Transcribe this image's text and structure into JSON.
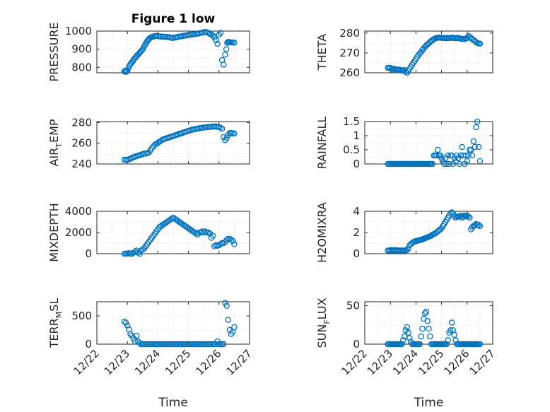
{
  "chart_data": [
    {
      "type": "scatter",
      "title": "Figure 1 low",
      "ylabel": "PRESSURE",
      "ylim": [
        770,
        1000
      ],
      "yticks": [
        "1000",
        "900",
        "800"
      ],
      "ytick_values": [
        1000,
        900,
        800
      ],
      "xlim": [
        0,
        5
      ],
      "x": [
        0.9,
        0.92,
        0.95,
        0.97,
        1.0,
        1.03,
        1.07,
        1.1,
        1.13,
        1.17,
        1.2,
        1.23,
        1.27,
        1.3,
        1.33,
        1.37,
        1.4,
        1.43,
        1.47,
        1.5,
        1.53,
        1.57,
        1.6,
        1.63,
        1.67,
        1.7,
        1.73,
        1.77,
        1.8,
        1.85,
        1.9,
        1.95,
        2.0,
        2.05,
        2.1,
        2.15,
        2.2,
        2.25,
        2.3,
        2.35,
        2.4,
        2.45,
        2.5,
        2.55,
        2.6,
        2.65,
        2.7,
        2.75,
        2.8,
        2.85,
        2.9,
        2.95,
        3.0,
        3.05,
        3.1,
        3.15,
        3.2,
        3.25,
        3.3,
        3.35,
        3.4,
        3.45,
        3.5,
        3.55,
        3.6,
        3.65,
        3.7,
        3.75,
        3.8,
        3.85,
        3.9,
        3.95,
        4.0,
        4.05,
        4.1,
        4.15,
        4.2,
        4.24,
        4.27,
        4.3,
        4.33,
        4.36,
        4.4,
        4.45,
        4.5
      ],
      "y": [
        778,
        780,
        775,
        779,
        782,
        795,
        810,
        818,
        825,
        832,
        840,
        848,
        855,
        862,
        868,
        873,
        880,
        886,
        893,
        900,
        910,
        920,
        930,
        940,
        948,
        955,
        960,
        965,
        968,
        970,
        972,
        973,
        972,
        971,
        970,
        970,
        969,
        968,
        968,
        967,
        965,
        963,
        962,
        964,
        966,
        968,
        970,
        971,
        972,
        974,
        975,
        977,
        978,
        980,
        981,
        982,
        983,
        985,
        986,
        988,
        990,
        991,
        993,
        995,
        993,
        990,
        985,
        980,
        975,
        965,
        950,
        930,
        980,
        990,
        840,
        815,
        870,
        900,
        935,
        940,
        940,
        938,
        937,
        937,
        936
      ],
      "color": "#0072bd"
    },
    {
      "type": "scatter",
      "ylabel": "THETA",
      "ylim": [
        260,
        281
      ],
      "yticks": [
        "280",
        "270",
        "260"
      ],
      "ytick_values": [
        280,
        270,
        260
      ],
      "xlim": [
        0,
        5
      ],
      "x": [
        0.9,
        0.95,
        1.0,
        1.05,
        1.1,
        1.15,
        1.2,
        1.25,
        1.3,
        1.35,
        1.4,
        1.45,
        1.5,
        1.55,
        1.6,
        1.65,
        1.7,
        1.75,
        1.8,
        1.85,
        1.9,
        1.95,
        2.0,
        2.05,
        2.1,
        2.15,
        2.2,
        2.25,
        2.3,
        2.35,
        2.4,
        2.45,
        2.5,
        2.55,
        2.6,
        2.65,
        2.7,
        2.75,
        2.8,
        2.85,
        2.9,
        2.95,
        3.0,
        3.05,
        3.1,
        3.15,
        3.2,
        3.25,
        3.3,
        3.35,
        3.4,
        3.45,
        3.5,
        3.55,
        3.6,
        3.65,
        3.7,
        3.75,
        3.8,
        3.85,
        3.9,
        3.95,
        4.0,
        4.05,
        4.1,
        4.15,
        4.2,
        4.25,
        4.3,
        4.35,
        4.4,
        4.45,
        4.5
      ],
      "y": [
        262.5,
        262.5,
        262.4,
        262.0,
        261.5,
        262.0,
        261.8,
        261.6,
        261.5,
        261.6,
        261.4,
        261.2,
        261.0,
        261.4,
        260.5,
        260.0,
        261.0,
        262.0,
        263.0,
        264.0,
        265.0,
        266.0,
        267.0,
        268.0,
        269.0,
        269.8,
        270.5,
        271.5,
        272.2,
        273.0,
        273.8,
        274.3,
        274.8,
        275.5,
        276.0,
        276.5,
        276.9,
        277.3,
        277.5,
        277.6,
        277.8,
        277.7,
        277.6,
        277.5,
        277.6,
        277.5,
        277.4,
        277.6,
        277.5,
        277.5,
        277.7,
        277.6,
        277.5,
        277.4,
        277.5,
        277.6,
        277.3,
        277.2,
        277.0,
        277.1,
        277.0,
        277.2,
        277.5,
        278.5,
        278.0,
        277.5,
        277.0,
        276.5,
        276.0,
        275.5,
        275.0,
        274.8,
        274.7
      ],
      "color": "#0072bd"
    },
    {
      "type": "scatter",
      "ylabel": "AIR_TEMP",
      "ylabel_main": "AIR",
      "ylabel_sub": "T",
      "ylabel_tail": "EMP",
      "ylim": [
        240,
        281
      ],
      "yticks": [
        "280",
        "260",
        "240"
      ],
      "ytick_values": [
        280,
        260,
        240
      ],
      "xlim": [
        0,
        5
      ],
      "x": [
        0.9,
        0.95,
        1.0,
        1.05,
        1.1,
        1.15,
        1.2,
        1.25,
        1.3,
        1.35,
        1.4,
        1.45,
        1.5,
        1.55,
        1.6,
        1.65,
        1.7,
        1.75,
        1.8,
        1.85,
        1.9,
        1.95,
        2.0,
        2.05,
        2.1,
        2.15,
        2.2,
        2.25,
        2.3,
        2.35,
        2.4,
        2.45,
        2.5,
        2.55,
        2.6,
        2.65,
        2.7,
        2.75,
        2.8,
        2.85,
        2.9,
        2.95,
        3.0,
        3.05,
        3.1,
        3.15,
        3.2,
        3.25,
        3.3,
        3.35,
        3.4,
        3.45,
        3.5,
        3.55,
        3.6,
        3.65,
        3.7,
        3.75,
        3.8,
        3.85,
        3.9,
        3.95,
        4.0,
        4.05,
        4.1,
        4.15,
        4.2,
        4.25,
        4.3,
        4.35,
        4.4,
        4.45,
        4.5
      ],
      "y": [
        244,
        244,
        244,
        244.5,
        245,
        246,
        246.5,
        247,
        247.5,
        248,
        248.5,
        249,
        249.5,
        250,
        250,
        250.5,
        251,
        253,
        255,
        257,
        258.5,
        259.5,
        260.5,
        261.5,
        262.5,
        263.5,
        264,
        264.5,
        265,
        265.5,
        266,
        266.5,
        267,
        267.5,
        268,
        268.5,
        269,
        269.5,
        270,
        270.5,
        271,
        271.5,
        272,
        272.5,
        273,
        273.3,
        273.6,
        274,
        274.2,
        274.5,
        274.8,
        275,
        275.2,
        275.4,
        275.5,
        275.7,
        275.8,
        276,
        276.1,
        276.2,
        276.3,
        276,
        275.5,
        275,
        274,
        266,
        263,
        265,
        268,
        270,
        270,
        269.5,
        269.5
      ],
      "color": "#0072bd"
    },
    {
      "type": "scatter",
      "ylabel": "RAINFALL",
      "ylim": [
        0,
        1.5
      ],
      "yticks": [
        "1.5",
        "1",
        "0.5",
        "0"
      ],
      "ytick_values": [
        1.5,
        1,
        0.5,
        0
      ],
      "xlim": [
        0,
        5
      ],
      "x": [
        0.9,
        0.95,
        1.0,
        1.05,
        1.1,
        1.15,
        1.2,
        1.25,
        1.3,
        1.35,
        1.4,
        1.45,
        1.5,
        1.55,
        1.6,
        1.65,
        1.7,
        1.75,
        1.8,
        1.85,
        1.9,
        1.95,
        2.0,
        2.05,
        2.1,
        2.15,
        2.2,
        2.25,
        2.3,
        2.35,
        2.4,
        2.45,
        2.5,
        2.55,
        2.6,
        2.65,
        2.7,
        2.75,
        2.8,
        2.85,
        2.9,
        2.95,
        3.0,
        3.05,
        3.1,
        3.15,
        3.2,
        3.25,
        3.3,
        3.35,
        3.4,
        3.45,
        3.5,
        3.55,
        3.6,
        3.65,
        3.7,
        3.75,
        3.8,
        3.85,
        3.9,
        3.95,
        4.0,
        4.05,
        4.1,
        4.15,
        4.2,
        4.25,
        4.3,
        4.35,
        4.4,
        4.45,
        4.5
      ],
      "y": [
        0,
        0,
        0,
        0,
        0,
        0,
        0,
        0,
        0,
        0,
        0,
        0,
        0,
        0,
        0,
        0,
        0,
        0,
        0,
        0,
        0,
        0,
        0,
        0,
        0,
        0,
        0,
        0,
        0,
        0,
        0,
        0,
        0,
        0,
        0,
        0,
        0.3,
        0.3,
        0.3,
        0.5,
        0.3,
        0.3,
        0.2,
        0.1,
        0,
        0.2,
        0,
        0.3,
        0,
        0.3,
        0.3,
        0,
        0.2,
        0.1,
        0.3,
        0.2,
        0,
        0.3,
        0.6,
        0.3,
        0,
        0.3,
        0.1,
        0.3,
        0.5,
        0.5,
        0.3,
        0.8,
        0.6,
        1.3,
        1.5,
        0.6,
        0.1
      ],
      "color": "#0072bd"
    },
    {
      "type": "scatter",
      "ylabel": "MIXDEPTH",
      "ylim": [
        0,
        4000
      ],
      "yticks": [
        "4000",
        "2000",
        "0"
      ],
      "ytick_values": [
        4000,
        2000,
        0
      ],
      "xlim": [
        0,
        5
      ],
      "x": [
        0.9,
        0.95,
        1.0,
        1.05,
        1.1,
        1.15,
        1.2,
        1.25,
        1.3,
        1.35,
        1.4,
        1.45,
        1.5,
        1.55,
        1.6,
        1.65,
        1.7,
        1.75,
        1.8,
        1.85,
        1.9,
        1.95,
        2.0,
        2.05,
        2.1,
        2.15,
        2.2,
        2.25,
        2.3,
        2.35,
        2.4,
        2.45,
        2.5,
        2.55,
        2.6,
        2.65,
        2.7,
        2.75,
        2.8,
        2.85,
        2.9,
        2.95,
        3.0,
        3.05,
        3.1,
        3.15,
        3.2,
        3.25,
        3.3,
        3.35,
        3.4,
        3.45,
        3.5,
        3.55,
        3.6,
        3.65,
        3.7,
        3.75,
        3.8,
        3.85,
        3.9,
        3.95,
        4.0,
        4.05,
        4.1,
        4.15,
        4.2,
        4.25,
        4.3,
        4.35,
        4.4,
        4.45,
        4.5
      ],
      "y": [
        0,
        0,
        20,
        50,
        0,
        0,
        100,
        200,
        300,
        100,
        0,
        300,
        400,
        500,
        700,
        900,
        1100,
        1300,
        1500,
        1700,
        1900,
        2100,
        2300,
        2500,
        2600,
        2700,
        2800,
        2900,
        3000,
        3100,
        3200,
        3300,
        3400,
        3300,
        3200,
        3100,
        3000,
        2900,
        2800,
        2700,
        2600,
        2500,
        2400,
        2300,
        2200,
        2100,
        2000,
        1900,
        1800,
        2000,
        2000,
        2100,
        2000,
        2100,
        2000,
        2000,
        1900,
        1500,
        1700,
        700,
        800,
        750,
        800,
        900,
        1000,
        1000,
        1100,
        1300,
        1400,
        1400,
        1300,
        1200,
        900
      ],
      "color": "#0072bd"
    },
    {
      "type": "scatter",
      "ylabel": "H2OMIXRA",
      "ylim": [
        0,
        4
      ],
      "yticks": [
        "4",
        "2",
        "0"
      ],
      "ytick_values": [
        4,
        2,
        0
      ],
      "xlim": [
        0,
        5
      ],
      "x": [
        0.9,
        0.95,
        1.0,
        1.05,
        1.1,
        1.15,
        1.2,
        1.25,
        1.3,
        1.35,
        1.4,
        1.45,
        1.5,
        1.55,
        1.6,
        1.65,
        1.7,
        1.75,
        1.8,
        1.85,
        1.9,
        1.95,
        2.0,
        2.05,
        2.1,
        2.15,
        2.2,
        2.25,
        2.3,
        2.35,
        2.4,
        2.45,
        2.5,
        2.55,
        2.6,
        2.65,
        2.7,
        2.75,
        2.8,
        2.85,
        2.9,
        2.95,
        3.0,
        3.05,
        3.1,
        3.15,
        3.2,
        3.25,
        3.3,
        3.35,
        3.4,
        3.45,
        3.5,
        3.55,
        3.6,
        3.65,
        3.7,
        3.75,
        3.8,
        3.85,
        3.9,
        3.95,
        4.0,
        4.05,
        4.1,
        4.15,
        4.2,
        4.25,
        4.3,
        4.35,
        4.4,
        4.45,
        4.5
      ],
      "y": [
        0.3,
        0.3,
        0.3,
        0.35,
        0.3,
        0.3,
        0.35,
        0.3,
        0.3,
        0.3,
        0.3,
        0.3,
        0.3,
        0.3,
        0.3,
        0.35,
        0.5,
        0.8,
        0.9,
        1.0,
        1.1,
        1.15,
        1.2,
        1.2,
        1.25,
        1.3,
        1.3,
        1.35,
        1.4,
        1.45,
        1.5,
        1.55,
        1.6,
        1.65,
        1.7,
        1.8,
        1.85,
        1.9,
        2.0,
        2.1,
        2.2,
        2.3,
        2.4,
        2.6,
        2.8,
        3.0,
        3.2,
        3.4,
        3.6,
        3.8,
        3.9,
        3.8,
        3.5,
        3.4,
        3.5,
        3.5,
        3.5,
        3.6,
        3.4,
        3.5,
        3.6,
        3.5,
        3.6,
        3.5,
        3.4,
        2.3,
        2.5,
        2.6,
        2.7,
        2.8,
        2.7,
        2.7,
        2.6
      ],
      "color": "#0072bd"
    },
    {
      "type": "scatter",
      "ylabel": "TERR_MSL",
      "ylabel_main": "TERR",
      "ylabel_sub": "M",
      "ylabel_tail": "SL",
      "ylim": [
        0,
        750
      ],
      "yticks": [
        "500",
        "0"
      ],
      "ytick_values": [
        500,
        0
      ],
      "xlim": [
        0,
        5
      ],
      "xticks": [
        "12/22",
        "12/23",
        "12/24",
        "12/25",
        "12/26",
        "12/27"
      ],
      "xlabel": "Time",
      "x": [
        0.9,
        0.95,
        1.0,
        1.05,
        1.1,
        1.15,
        1.2,
        1.25,
        1.3,
        1.35,
        1.4,
        1.45,
        1.5,
        1.55,
        1.6,
        1.65,
        1.7,
        1.75,
        1.8,
        1.85,
        1.9,
        1.95,
        2.0,
        2.05,
        2.1,
        2.15,
        2.2,
        2.25,
        2.3,
        2.35,
        2.4,
        2.45,
        2.5,
        2.55,
        2.6,
        2.65,
        2.7,
        2.75,
        2.8,
        2.85,
        2.9,
        2.95,
        3.0,
        3.05,
        3.1,
        3.15,
        3.2,
        3.25,
        3.3,
        3.35,
        3.4,
        3.45,
        3.5,
        3.55,
        3.6,
        3.65,
        3.7,
        3.75,
        3.8,
        3.85,
        3.9,
        3.95,
        4.0,
        4.05,
        4.1,
        4.15,
        4.2,
        4.25,
        4.3,
        4.35,
        4.4,
        4.45,
        4.5
      ],
      "y": [
        400,
        380,
        330,
        260,
        180,
        150,
        100,
        50,
        150,
        50,
        20,
        0,
        0,
        0,
        0,
        0,
        0,
        0,
        0,
        0,
        0,
        0,
        0,
        0,
        0,
        0,
        0,
        0,
        0,
        0,
        0,
        0,
        0,
        0,
        0,
        0,
        0,
        0,
        0,
        0,
        0,
        0,
        0,
        0,
        0,
        0,
        0,
        0,
        0,
        0,
        0,
        0,
        0,
        0,
        0,
        0,
        0,
        0,
        0,
        0,
        0,
        50,
        0,
        0,
        0,
        0,
        730,
        680,
        430,
        250,
        180,
        220,
        300
      ],
      "color": "#0072bd"
    },
    {
      "type": "scatter",
      "ylabel": "SUN_FLUX",
      "ylabel_main": "SUN",
      "ylabel_sub": "F",
      "ylabel_tail": "LUX",
      "ylim": [
        0,
        55
      ],
      "yticks": [
        "50",
        "0"
      ],
      "ytick_values": [
        50,
        0
      ],
      "xlim": [
        0,
        5
      ],
      "xticks": [
        "12/22",
        "12/23",
        "12/24",
        "12/25",
        "12/26",
        "12/27"
      ],
      "xlabel": "Time",
      "x": [
        0.9,
        0.95,
        1.0,
        1.05,
        1.1,
        1.15,
        1.2,
        1.25,
        1.3,
        1.35,
        1.4,
        1.45,
        1.5,
        1.55,
        1.6,
        1.65,
        1.7,
        1.75,
        1.8,
        1.85,
        1.9,
        1.95,
        2.0,
        2.05,
        2.1,
        2.15,
        2.2,
        2.25,
        2.3,
        2.35,
        2.4,
        2.45,
        2.5,
        2.55,
        2.6,
        2.65,
        2.7,
        2.75,
        2.8,
        2.85,
        2.9,
        2.95,
        3.0,
        3.05,
        3.1,
        3.15,
        3.2,
        3.25,
        3.3,
        3.35,
        3.4,
        3.45,
        3.5,
        3.55,
        3.6,
        3.65,
        3.7,
        3.75,
        3.8,
        3.85,
        3.9,
        3.95,
        4.0,
        4.05,
        4.1,
        4.15,
        4.2,
        4.25,
        4.3,
        4.35,
        4.4,
        4.45,
        4.5
      ],
      "y": [
        0,
        0,
        0,
        0,
        0,
        0,
        0,
        0,
        0,
        0,
        0,
        0,
        5,
        10,
        18,
        22,
        15,
        8,
        3,
        0,
        0,
        0,
        0,
        0,
        0,
        0,
        10,
        20,
        33,
        40,
        42,
        30,
        20,
        10,
        0,
        0,
        0,
        0,
        0,
        0,
        0,
        0,
        0,
        0,
        0,
        0,
        0,
        5,
        15,
        18,
        28,
        18,
        12,
        5,
        0,
        0,
        0,
        0,
        0,
        0,
        0,
        0,
        0,
        0,
        0,
        0,
        0,
        0,
        0,
        0,
        0,
        0,
        0
      ],
      "color": "#0072bd"
    }
  ]
}
